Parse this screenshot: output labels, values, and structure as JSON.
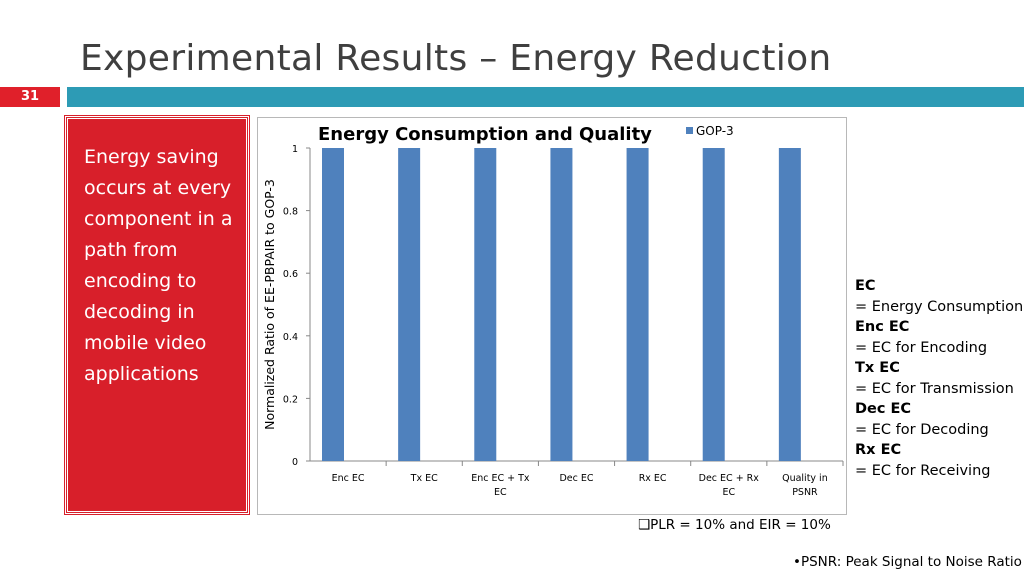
{
  "slide": {
    "title": "Experimental Results – Energy Reduction",
    "number": "31",
    "accent_color": "#2d9bb5",
    "badge_color": "#e0202a"
  },
  "left_panel": {
    "text": "Energy saving occurs at every component in a path from encoding to decoding in mobile video applications",
    "background": "#d81f2a"
  },
  "chart_data": {
    "type": "bar",
    "title": "Energy Consumption and Quality",
    "ylabel": "Normalized Ratio of EE-PBPAIR to GOP-3",
    "xlabel": "",
    "categories": [
      "Enc EC",
      "Tx EC",
      "Enc EC + Tx EC",
      "Dec EC",
      "Rx EC",
      "Dec EC + Rx EC",
      "Quality in PSNR"
    ],
    "series": [
      {
        "name": "GOP-3",
        "values": [
          1,
          1,
          1,
          1,
          1,
          1,
          1
        ],
        "color": "#4f81bd"
      }
    ],
    "ylim": [
      0,
      1
    ],
    "yticks": [
      "0",
      "0.2",
      "0.4",
      "0.6",
      "0.8",
      "1"
    ],
    "legend": "top-right",
    "grid": false
  },
  "definitions": [
    {
      "term": "EC",
      "meaning": "= Energy Consumption"
    },
    {
      "term": "Enc EC",
      "meaning": "= EC for Encoding"
    },
    {
      "term": "Tx EC",
      "meaning": "= EC for Transmission"
    },
    {
      "term": "Dec EC",
      "meaning": "= EC for Decoding"
    },
    {
      "term": "Rx EC",
      "meaning": "= EC for Receiving"
    }
  ],
  "notes": {
    "plr": "❑PLR = 10% and EIR = 10%",
    "psnr": "•PSNR: Peak Signal to Noise Ratio"
  }
}
